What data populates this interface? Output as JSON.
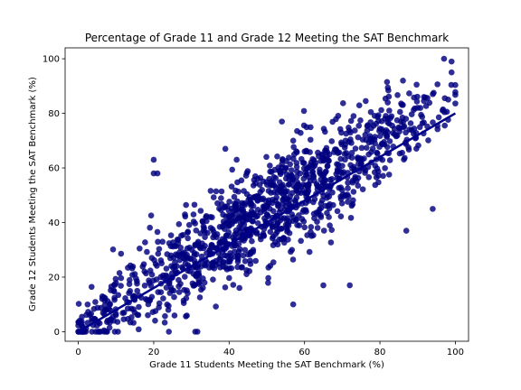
{
  "chart_data": {
    "type": "scatter",
    "title": "Percentage of Grade 11 and Grade 12 Meeting the SAT Benchmark",
    "xlabel": "Grade 11 Students Meeting the SAT Benchmark (%)",
    "ylabel": "Grade 12 Students Meeting the SAT Benchmark (%)",
    "xlim": [
      -3.5,
      103.5
    ],
    "ylim": [
      -3.5,
      104
    ],
    "xticks": [
      0,
      20,
      40,
      60,
      80,
      100
    ],
    "yticks": [
      0,
      20,
      40,
      60,
      80,
      100
    ],
    "grid": false,
    "point_color": "#00007f",
    "point_count": 1200,
    "trend_line": {
      "x": [
        0,
        100
      ],
      "y": [
        0,
        80
      ],
      "color": "#00008b"
    },
    "notable_points": [
      {
        "x": 0,
        "y": 0
      },
      {
        "x": 1,
        "y": 0
      },
      {
        "x": 2,
        "y": 0
      },
      {
        "x": 20,
        "y": 63
      },
      {
        "x": 20,
        "y": 58
      },
      {
        "x": 21,
        "y": 58
      },
      {
        "x": 39,
        "y": 67
      },
      {
        "x": 42,
        "y": 63
      },
      {
        "x": 54,
        "y": 77
      },
      {
        "x": 57,
        "y": 70
      },
      {
        "x": 73,
        "y": 79
      },
      {
        "x": 94,
        "y": 45
      },
      {
        "x": 87,
        "y": 37
      },
      {
        "x": 31,
        "y": 0
      },
      {
        "x": 57,
        "y": 10
      },
      {
        "x": 72,
        "y": 17
      },
      {
        "x": 65,
        "y": 17
      },
      {
        "x": 97,
        "y": 100
      },
      {
        "x": 99,
        "y": 99
      },
      {
        "x": 99,
        "y": 95
      }
    ]
  }
}
